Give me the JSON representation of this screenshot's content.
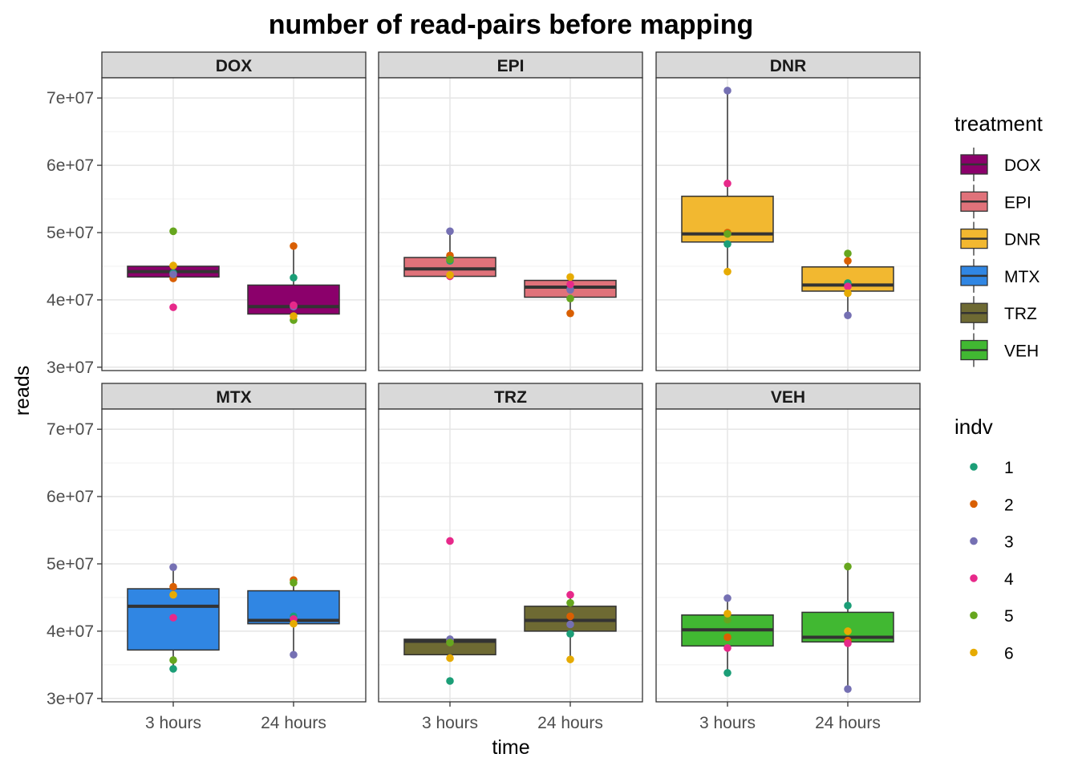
{
  "chart_data": {
    "type": "box",
    "title": "number of read-pairs before mapping",
    "xlabel": "time",
    "ylabel": "reads",
    "categories": [
      "3 hours",
      "24 hours"
    ],
    "ylim": [
      29500000,
      73000000
    ],
    "yticks": [
      30000000,
      40000000,
      50000000,
      60000000,
      70000000
    ],
    "ytick_labels": [
      "3e+07",
      "4e+07",
      "5e+07",
      "6e+07",
      "7e+07"
    ],
    "grid": true,
    "legend_position": "right",
    "treatment_legend": {
      "title": "treatment",
      "entries": [
        {
          "label": "DOX",
          "color": "#8B006B"
        },
        {
          "label": "EPI",
          "color": "#E0727A"
        },
        {
          "label": "DNR",
          "color": "#F2B830"
        },
        {
          "label": "MTX",
          "color": "#3086E3"
        },
        {
          "label": "TRZ",
          "color": "#6E6A33"
        },
        {
          "label": "VEH",
          "color": "#41B832"
        }
      ]
    },
    "indv_legend": {
      "title": "indv",
      "entries": [
        {
          "label": "1",
          "color": "#1B9E77"
        },
        {
          "label": "2",
          "color": "#D95F02"
        },
        {
          "label": "3",
          "color": "#7570B3"
        },
        {
          "label": "4",
          "color": "#E7298A"
        },
        {
          "label": "5",
          "color": "#66A61E"
        },
        {
          "label": "6",
          "color": "#E6AB02"
        }
      ]
    },
    "panels": [
      {
        "name": "DOX",
        "fill": "#8B006B",
        "boxes": [
          {
            "time": "3 hours",
            "q1": 43400000,
            "median": 44200000,
            "q3": 45000000,
            "whisker_low": 43400000,
            "whisker_high": 45000000,
            "points": [
              44000000,
              43200000,
              43800000,
              38900000,
              50200000,
              45100000
            ]
          },
          {
            "time": "24 hours",
            "q1": 37900000,
            "median": 39000000,
            "q3": 42200000,
            "whisker_low": 37000000,
            "whisker_high": 48000000,
            "points": [
              43300000,
              48000000,
              39000000,
              39200000,
              37000000,
              37600000
            ]
          }
        ]
      },
      {
        "name": "EPI",
        "fill": "#E0727A",
        "boxes": [
          {
            "time": "3 hours",
            "q1": 43500000,
            "median": 44600000,
            "q3": 46300000,
            "whisker_low": 43500000,
            "whisker_high": 50200000,
            "points": [
              45800000,
              46600000,
              50200000,
              43500000,
              46000000,
              43700000
            ]
          },
          {
            "time": "24 hours",
            "q1": 40400000,
            "median": 41900000,
            "q3": 42900000,
            "whisker_low": 38000000,
            "whisker_high": 43400000,
            "points": [
              41600000,
              38000000,
              41500000,
              42300000,
              40200000,
              43400000
            ]
          }
        ]
      },
      {
        "name": "DNR",
        "fill": "#F2B830",
        "boxes": [
          {
            "time": "3 hours",
            "q1": 48600000,
            "median": 49800000,
            "q3": 55400000,
            "whisker_low": 44200000,
            "whisker_high": 71100000,
            "points": [
              48300000,
              50000000,
              71100000,
              57300000,
              49800000,
              44200000
            ]
          },
          {
            "time": "24 hours",
            "q1": 41300000,
            "median": 42200000,
            "q3": 44900000,
            "whisker_low": 37700000,
            "whisker_high": 46900000,
            "points": [
              42500000,
              45800000,
              37700000,
              42000000,
              46900000,
              41000000
            ]
          }
        ]
      },
      {
        "name": "MTX",
        "fill": "#3086E3",
        "boxes": [
          {
            "time": "3 hours",
            "q1": 37200000,
            "median": 43700000,
            "q3": 46300000,
            "whisker_low": 34400000,
            "whisker_high": 49500000,
            "points": [
              34400000,
              46600000,
              49500000,
              42000000,
              35700000,
              45400000
            ]
          },
          {
            "time": "24 hours",
            "q1": 41100000,
            "median": 41600000,
            "q3": 46000000,
            "whisker_low": 36500000,
            "whisker_high": 47600000,
            "points": [
              42200000,
              47600000,
              36500000,
              41800000,
              47200000,
              41100000
            ]
          }
        ]
      },
      {
        "name": "TRZ",
        "fill": "#6E6A33",
        "boxes": [
          {
            "time": "3 hours",
            "q1": 36500000,
            "median": 38500000,
            "q3": 38800000,
            "whisker_low": 36000000,
            "whisker_high": 38800000,
            "points": [
              32600000,
              38600000,
              38800000,
              53400000,
              38300000,
              36000000
            ]
          },
          {
            "time": "24 hours",
            "q1": 40000000,
            "median": 41600000,
            "q3": 43700000,
            "whisker_low": 35800000,
            "whisker_high": 45400000,
            "points": [
              39600000,
              42200000,
              41000000,
              45400000,
              44200000,
              35800000
            ]
          }
        ]
      },
      {
        "name": "VEH",
        "fill": "#41B832",
        "boxes": [
          {
            "time": "3 hours",
            "q1": 37800000,
            "median": 40200000,
            "q3": 42400000,
            "whisker_low": 33800000,
            "whisker_high": 44900000,
            "points": [
              33800000,
              39100000,
              44900000,
              37500000,
              41700000,
              42600000
            ]
          },
          {
            "time": "24 hours",
            "q1": 38400000,
            "median": 39100000,
            "q3": 42800000,
            "whisker_low": 31400000,
            "whisker_high": 49600000,
            "points": [
              43800000,
              38600000,
              31400000,
              38200000,
              49600000,
              40000000
            ]
          }
        ]
      }
    ]
  }
}
